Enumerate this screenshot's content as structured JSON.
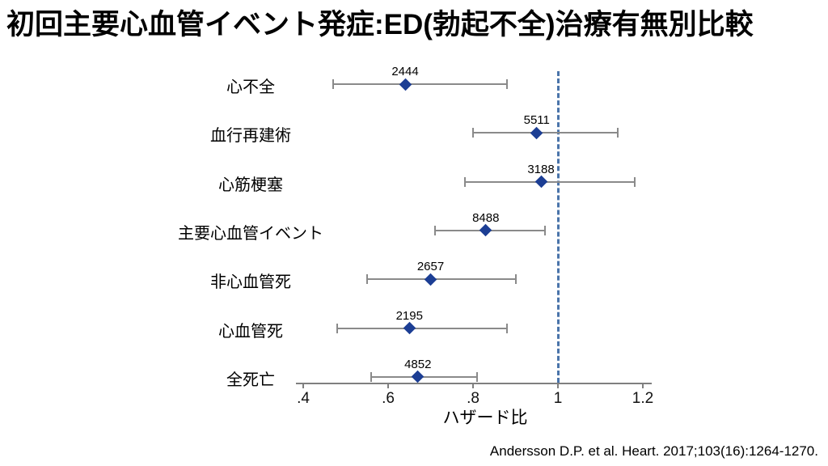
{
  "title": "初回主要心血管イベント発症:ED(勃起不全)治療有無別比較",
  "citation": "Andersson D.P. et al. Heart. 2017;103(16):1264-1270.",
  "colors": {
    "marker": "#1c3e94",
    "ci_line": "#8a8a8a",
    "ref_line": "#4a74aa",
    "axis": "#7f7f7f",
    "text": "#000000"
  },
  "chart_data": {
    "type": "scatter",
    "variant": "forest-plot",
    "xlabel": "ハザード比",
    "xlim": [
      0.4,
      1.2
    ],
    "ref_line_value": 1,
    "x_ticks": [
      {
        "value": 0.4,
        "label": ".4"
      },
      {
        "value": 0.6,
        "label": ".6"
      },
      {
        "value": 0.8,
        "label": ".8"
      },
      {
        "value": 1.0,
        "label": "1"
      },
      {
        "value": 1.2,
        "label": "1.2"
      }
    ],
    "rows": [
      {
        "label": "心不全",
        "n": "2444",
        "hr": 0.64,
        "ci_low": 0.47,
        "ci_high": 0.88
      },
      {
        "label": "血行再建術",
        "n": "5511",
        "hr": 0.95,
        "ci_low": 0.8,
        "ci_high": 1.14
      },
      {
        "label": "心筋梗塞",
        "n": "3188",
        "hr": 0.96,
        "ci_low": 0.78,
        "ci_high": 1.18
      },
      {
        "label": "主要心血管イベント",
        "n": "8488",
        "hr": 0.83,
        "ci_low": 0.71,
        "ci_high": 0.97
      },
      {
        "label": "非心血管死",
        "n": "2657",
        "hr": 0.7,
        "ci_low": 0.55,
        "ci_high": 0.9
      },
      {
        "label": "心血管死",
        "n": "2195",
        "hr": 0.65,
        "ci_low": 0.48,
        "ci_high": 0.88
      },
      {
        "label": "全死亡",
        "n": "4852",
        "hr": 0.67,
        "ci_low": 0.56,
        "ci_high": 0.81
      }
    ]
  }
}
